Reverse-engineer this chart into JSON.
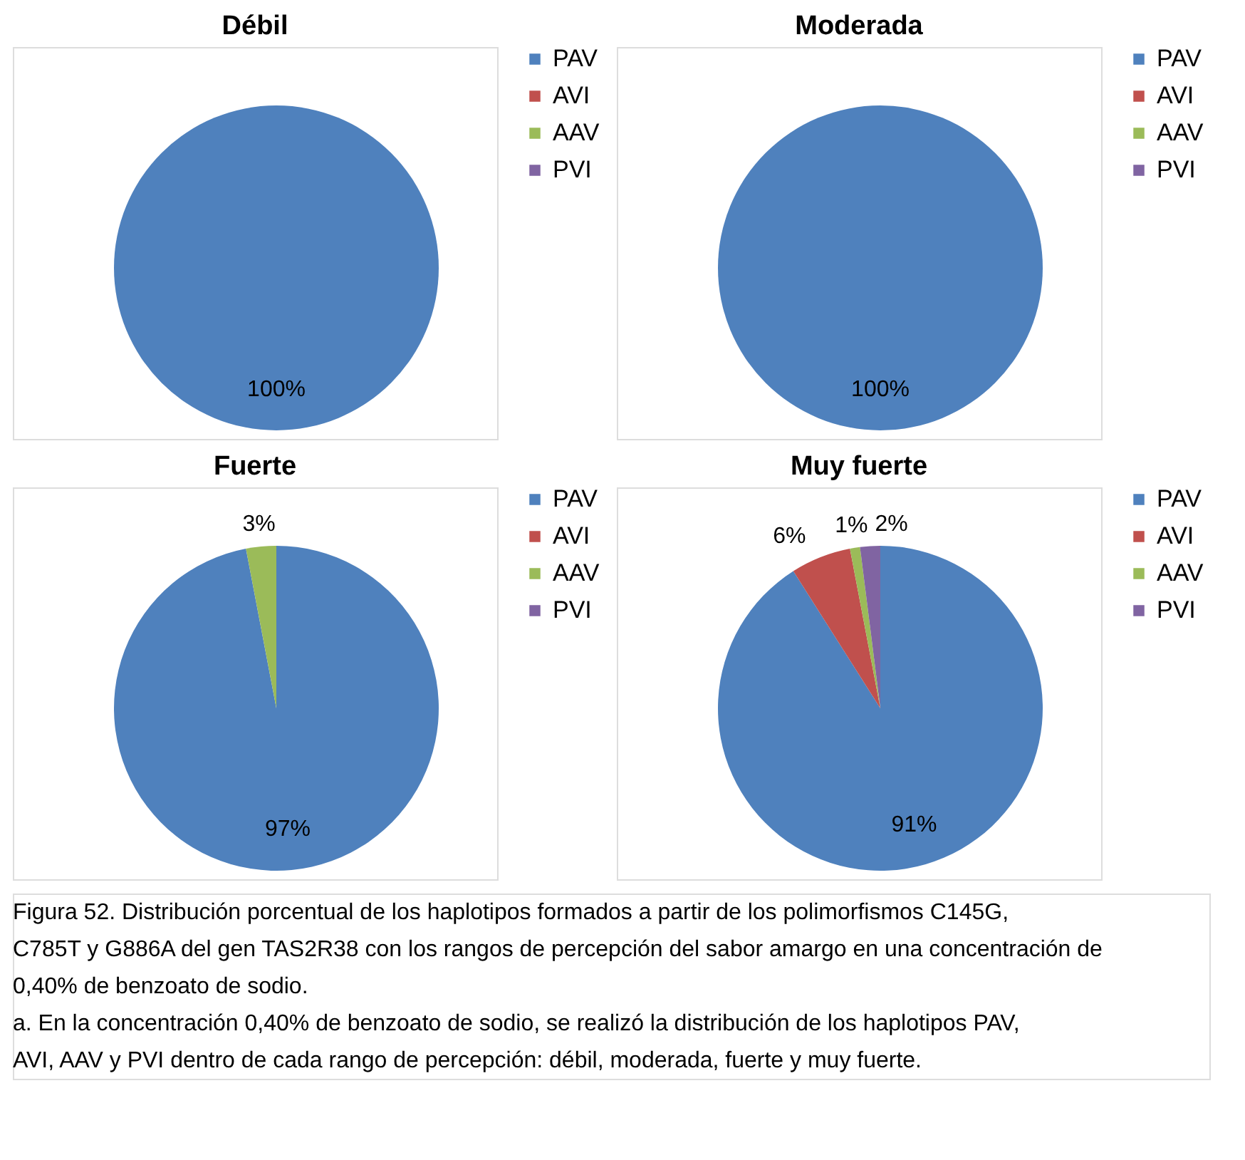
{
  "chart_data": [
    {
      "type": "pie",
      "title": "Débil",
      "categories": [
        "PAV",
        "AVI",
        "AAV",
        "PVI"
      ],
      "values": [
        100,
        0,
        0,
        0
      ],
      "colors": [
        "#4f81bd",
        "#c0504d",
        "#9bbb59",
        "#8064a2"
      ],
      "value_labels": [
        "100%",
        null,
        null,
        null
      ],
      "legend": "right"
    },
    {
      "type": "pie",
      "title": "Moderada",
      "categories": [
        "PAV",
        "AVI",
        "AAV",
        "PVI"
      ],
      "values": [
        100,
        0,
        0,
        0
      ],
      "colors": [
        "#4f81bd",
        "#c0504d",
        "#9bbb59",
        "#8064a2"
      ],
      "value_labels": [
        "100%",
        null,
        null,
        null
      ],
      "legend": "right"
    },
    {
      "type": "pie",
      "title": "Fuerte",
      "categories": [
        "PAV",
        "AVI",
        "AAV",
        "PVI"
      ],
      "values": [
        97,
        0,
        3,
        0
      ],
      "colors": [
        "#4f81bd",
        "#c0504d",
        "#9bbb59",
        "#8064a2"
      ],
      "value_labels": [
        "97%",
        null,
        "3%",
        null
      ],
      "legend": "right"
    },
    {
      "type": "pie",
      "title": "Muy fuerte",
      "categories": [
        "PAV",
        "AVI",
        "AAV",
        "PVI"
      ],
      "values": [
        91,
        6,
        1,
        2
      ],
      "colors": [
        "#4f81bd",
        "#c0504d",
        "#9bbb59",
        "#8064a2"
      ],
      "value_labels": [
        "91%",
        "6%",
        "1%",
        "2%"
      ],
      "legend": "right",
      "annotations": [
        "Figura 52. Distribución porcentual de los haplotipos formados a partir de los polimorfismos C145G, C785T y G886A del gen TAS2R38 con los rangos de percepción del sabor amargo en una concentración de 0,40% de benzoato de sodio.",
        "a. En la concentración 0,40% de benzoato de sodio, se realizó la distribución de los haplotipos PAV, AVI, AAV y PVI dentro de cada rango de percepción: débil, moderada, fuerte y muy fuerte."
      ]
    }
  ]
}
